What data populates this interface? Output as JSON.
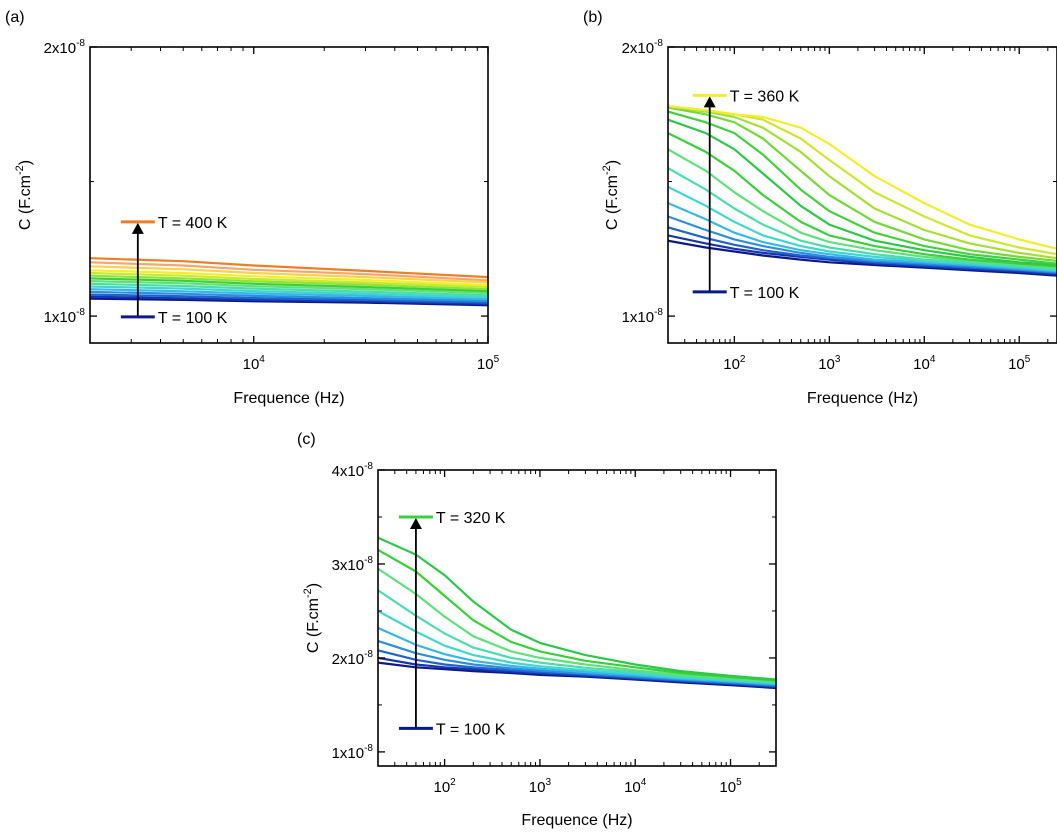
{
  "chart_data": [
    {
      "panel_label": "(a)",
      "type": "line",
      "xlabel": "Frequence (Hz)",
      "ylabel": "C (F.cm⁻²)",
      "ylabel_base": "C (F.cm",
      "ylabel_exp": "-2",
      "ylabel_close": ")",
      "xscale": "log",
      "xlim": [
        2000,
        100000
      ],
      "ylim": [
        9e-09,
        2e-08
      ],
      "xticks": [
        {
          "v": 10000,
          "base": "10",
          "exp": "4"
        },
        {
          "v": 100000,
          "base": "10",
          "exp": "5"
        }
      ],
      "yticks": [
        {
          "v": 1e-08,
          "base": "1x10",
          "exp": "-8"
        },
        {
          "v": 2e-08,
          "base": "2x10",
          "exp": "-8"
        }
      ],
      "temp_low": {
        "text": "T = 100 K",
        "italic_T": true,
        "color": "#0b1a8a",
        "freq": 3200,
        "value": 9.97e-09
      },
      "temp_high": {
        "text": "T = 400 K",
        "italic_T": true,
        "color": "#f07d22",
        "freq": 3200,
        "value": 1.35e-08
      },
      "arrow": {
        "freq": 3200,
        "from": 9.97e-09,
        "to": 1.35e-08
      },
      "x": [
        2000,
        5000,
        10000,
        30000,
        100000
      ],
      "series": [
        {
          "color": "#0b1a8a",
          "values": [
            1.065e-08,
            1.06e-08,
            1.055e-08,
            1.05e-08,
            1.04e-08
          ]
        },
        {
          "color": "#1536b0",
          "values": [
            1.072e-08,
            1.066e-08,
            1.06e-08,
            1.055e-08,
            1.045e-08
          ]
        },
        {
          "color": "#1e63d0",
          "values": [
            1.08e-08,
            1.074e-08,
            1.067e-08,
            1.06e-08,
            1.05e-08
          ]
        },
        {
          "color": "#2a8fe0",
          "values": [
            1.09e-08,
            1.083e-08,
            1.075e-08,
            1.067e-08,
            1.056e-08
          ]
        },
        {
          "color": "#35b8e8",
          "values": [
            1.1e-08,
            1.092e-08,
            1.084e-08,
            1.075e-08,
            1.063e-08
          ]
        },
        {
          "color": "#3fd6d0",
          "values": [
            1.11e-08,
            1.102e-08,
            1.093e-08,
            1.083e-08,
            1.07e-08
          ]
        },
        {
          "color": "#4bdca8",
          "values": [
            1.12e-08,
            1.112e-08,
            1.102e-08,
            1.091e-08,
            1.077e-08
          ]
        },
        {
          "color": "#5fe07a",
          "values": [
            1.13e-08,
            1.122e-08,
            1.111e-08,
            1.1e-08,
            1.085e-08
          ]
        },
        {
          "color": "#39d03a",
          "values": [
            1.14e-08,
            1.131e-08,
            1.12e-08,
            1.108e-08,
            1.093e-08
          ]
        },
        {
          "color": "#8fe23a",
          "values": [
            1.15e-08,
            1.14e-08,
            1.129e-08,
            1.117e-08,
            1.1e-08
          ]
        },
        {
          "color": "#c6ea2e",
          "values": [
            1.16e-08,
            1.15e-08,
            1.138e-08,
            1.125e-08,
            1.108e-08
          ]
        },
        {
          "color": "#f2ee2a",
          "values": [
            1.17e-08,
            1.16e-08,
            1.148e-08,
            1.134e-08,
            1.115e-08
          ]
        },
        {
          "color": "#f7d24a",
          "values": [
            1.185e-08,
            1.174e-08,
            1.16e-08,
            1.145e-08,
            1.125e-08
          ]
        },
        {
          "color": "#f5a56e",
          "values": [
            1.2e-08,
            1.188e-08,
            1.172e-08,
            1.156e-08,
            1.133e-08
          ]
        },
        {
          "color": "#f07d22",
          "values": [
            1.215e-08,
            1.204e-08,
            1.188e-08,
            1.168e-08,
            1.145e-08
          ]
        }
      ]
    },
    {
      "panel_label": "(b)",
      "type": "line",
      "xlabel": "Frequence (Hz)",
      "ylabel": "C (F.cm⁻²)",
      "ylabel_base": "C (F.cm",
      "ylabel_exp": "-2",
      "ylabel_close": ")",
      "xscale": "log",
      "xlim": [
        20,
        250000
      ],
      "ylim": [
        9e-09,
        2e-08
      ],
      "xticks": [
        {
          "v": 100,
          "base": "10",
          "exp": "2"
        },
        {
          "v": 1000,
          "base": "10",
          "exp": "3"
        },
        {
          "v": 10000,
          "base": "10",
          "exp": "4"
        },
        {
          "v": 100000,
          "base": "10",
          "exp": "5"
        }
      ],
      "yticks": [
        {
          "v": 1e-08,
          "base": "1x10",
          "exp": "-8"
        },
        {
          "v": 2e-08,
          "base": "2x10",
          "exp": "-8"
        }
      ],
      "temp_low": {
        "text": "T = 100 K",
        "italic_T": false,
        "color": "#0b1a8a",
        "freq": 55,
        "value": 1.09e-08
      },
      "temp_high": {
        "text": "T = 360 K",
        "italic_T": false,
        "color": "#f2ee2a",
        "freq": 55,
        "value": 1.82e-08
      },
      "arrow": {
        "freq": 55,
        "from": 1.09e-08,
        "to": 1.82e-08
      },
      "x": [
        20,
        50,
        100,
        200,
        500,
        1000,
        3000,
        10000,
        30000,
        100000,
        250000
      ],
      "series": [
        {
          "color": "#0b1a8a",
          "values": [
            1.28e-08,
            1.255e-08,
            1.24e-08,
            1.225e-08,
            1.21e-08,
            1.2e-08,
            1.19e-08,
            1.18e-08,
            1.17e-08,
            1.16e-08,
            1.15e-08
          ]
        },
        {
          "color": "#1536b0",
          "values": [
            1.3e-08,
            1.27e-08,
            1.25e-08,
            1.235e-08,
            1.22e-08,
            1.21e-08,
            1.195e-08,
            1.185e-08,
            1.175e-08,
            1.165e-08,
            1.155e-08
          ]
        },
        {
          "color": "#1e63d0",
          "values": [
            1.33e-08,
            1.29e-08,
            1.265e-08,
            1.245e-08,
            1.225e-08,
            1.215e-08,
            1.2e-08,
            1.19e-08,
            1.18e-08,
            1.17e-08,
            1.16e-08
          ]
        },
        {
          "color": "#2a8fe0",
          "values": [
            1.37e-08,
            1.32e-08,
            1.285e-08,
            1.26e-08,
            1.235e-08,
            1.22e-08,
            1.205e-08,
            1.195e-08,
            1.185e-08,
            1.173e-08,
            1.163e-08
          ]
        },
        {
          "color": "#35b8e8",
          "values": [
            1.42e-08,
            1.36e-08,
            1.31e-08,
            1.275e-08,
            1.245e-08,
            1.23e-08,
            1.21e-08,
            1.2e-08,
            1.19e-08,
            1.177e-08,
            1.167e-08
          ]
        },
        {
          "color": "#3fd6d0",
          "values": [
            1.48e-08,
            1.41e-08,
            1.35e-08,
            1.3e-08,
            1.26e-08,
            1.24e-08,
            1.22e-08,
            1.205e-08,
            1.195e-08,
            1.182e-08,
            1.17e-08
          ]
        },
        {
          "color": "#4bdca8",
          "values": [
            1.55e-08,
            1.47e-08,
            1.4e-08,
            1.34e-08,
            1.28e-08,
            1.255e-08,
            1.23e-08,
            1.21e-08,
            1.2e-08,
            1.186e-08,
            1.175e-08
          ]
        },
        {
          "color": "#5fe07a",
          "values": [
            1.62e-08,
            1.54e-08,
            1.46e-08,
            1.39e-08,
            1.31e-08,
            1.275e-08,
            1.245e-08,
            1.22e-08,
            1.205e-08,
            1.19e-08,
            1.18e-08
          ]
        },
        {
          "color": "#39d03a",
          "values": [
            1.68e-08,
            1.61e-08,
            1.54e-08,
            1.45e-08,
            1.35e-08,
            1.3e-08,
            1.26e-08,
            1.23e-08,
            1.21e-08,
            1.195e-08,
            1.185e-08
          ]
        },
        {
          "color": "#2cc84a",
          "values": [
            1.73e-08,
            1.68e-08,
            1.62e-08,
            1.53e-08,
            1.41e-08,
            1.34e-08,
            1.28e-08,
            1.245e-08,
            1.22e-08,
            1.2e-08,
            1.19e-08
          ]
        },
        {
          "color": "#43d040",
          "values": [
            1.76e-08,
            1.72e-08,
            1.68e-08,
            1.6e-08,
            1.47e-08,
            1.39e-08,
            1.31e-08,
            1.26e-08,
            1.23e-08,
            1.21e-08,
            1.195e-08
          ]
        },
        {
          "color": "#73d83a",
          "values": [
            1.775e-08,
            1.75e-08,
            1.72e-08,
            1.66e-08,
            1.54e-08,
            1.45e-08,
            1.35e-08,
            1.285e-08,
            1.245e-08,
            1.22e-08,
            1.205e-08
          ]
        },
        {
          "color": "#a4e034",
          "values": [
            1.78e-08,
            1.76e-08,
            1.74e-08,
            1.7e-08,
            1.61e-08,
            1.52e-08,
            1.4e-08,
            1.32e-08,
            1.27e-08,
            1.235e-08,
            1.215e-08
          ]
        },
        {
          "color": "#cfe62e",
          "values": [
            1.78e-08,
            1.765e-08,
            1.75e-08,
            1.73e-08,
            1.66e-08,
            1.58e-08,
            1.46e-08,
            1.37e-08,
            1.3e-08,
            1.255e-08,
            1.23e-08
          ]
        },
        {
          "color": "#f2ee2a",
          "values": [
            1.78e-08,
            1.765e-08,
            1.75e-08,
            1.74e-08,
            1.7e-08,
            1.64e-08,
            1.52e-08,
            1.42e-08,
            1.34e-08,
            1.285e-08,
            1.25e-08
          ]
        }
      ]
    },
    {
      "panel_label": "(c)",
      "type": "line",
      "xlabel": "Frequence (Hz)",
      "ylabel": "C (F.cm⁻²)",
      "ylabel_base": "C (F.cm",
      "ylabel_exp": "-2",
      "ylabel_close": ")",
      "xscale": "log",
      "xlim": [
        20,
        300000
      ],
      "ylim": [
        8.5e-09,
        4e-08
      ],
      "xticks": [
        {
          "v": 100,
          "base": "10",
          "exp": "2"
        },
        {
          "v": 1000,
          "base": "10",
          "exp": "3"
        },
        {
          "v": 10000,
          "base": "10",
          "exp": "4"
        },
        {
          "v": 100000,
          "base": "10",
          "exp": "5"
        }
      ],
      "yticks": [
        {
          "v": 1e-08,
          "base": "1x10",
          "exp": "-8"
        },
        {
          "v": 2e-08,
          "base": "2x10",
          "exp": "-8"
        },
        {
          "v": 3e-08,
          "base": "3x10",
          "exp": "-8"
        },
        {
          "v": 4e-08,
          "base": "4x10",
          "exp": "-8"
        }
      ],
      "temp_low": {
        "text": "T = 100 K",
        "italic_T": false,
        "color": "#0b1a8a",
        "freq": 50,
        "value": 1.25e-08
      },
      "temp_high": {
        "text": "T = 320 K",
        "italic_T": false,
        "color": "#39d03a",
        "freq": 50,
        "value": 3.5e-08
      },
      "arrow": {
        "freq": 50,
        "from": 1.25e-08,
        "to": 3.5e-08
      },
      "x": [
        20,
        50,
        100,
        200,
        500,
        1000,
        3000,
        10000,
        30000,
        100000,
        300000
      ],
      "series": [
        {
          "color": "#0b1a8a",
          "values": [
            1.95e-08,
            1.9e-08,
            1.88e-08,
            1.86e-08,
            1.84e-08,
            1.82e-08,
            1.8e-08,
            1.77e-08,
            1.74e-08,
            1.71e-08,
            1.68e-08
          ]
        },
        {
          "color": "#1536b0",
          "values": [
            2e-08,
            1.93e-08,
            1.9e-08,
            1.88e-08,
            1.855e-08,
            1.835e-08,
            1.81e-08,
            1.78e-08,
            1.75e-08,
            1.72e-08,
            1.69e-08
          ]
        },
        {
          "color": "#1e63d0",
          "values": [
            2.08e-08,
            1.98e-08,
            1.93e-08,
            1.9e-08,
            1.87e-08,
            1.85e-08,
            1.825e-08,
            1.79e-08,
            1.76e-08,
            1.73e-08,
            1.7e-08
          ]
        },
        {
          "color": "#2a8fe0",
          "values": [
            2.18e-08,
            2.05e-08,
            1.98e-08,
            1.93e-08,
            1.89e-08,
            1.865e-08,
            1.835e-08,
            1.8e-08,
            1.77e-08,
            1.74e-08,
            1.71e-08
          ]
        },
        {
          "color": "#35b8e8",
          "values": [
            2.32e-08,
            2.14e-08,
            2.04e-08,
            1.97e-08,
            1.915e-08,
            1.885e-08,
            1.85e-08,
            1.815e-08,
            1.78e-08,
            1.75e-08,
            1.72e-08
          ]
        },
        {
          "color": "#3fd6d0",
          "values": [
            2.5e-08,
            2.28e-08,
            2.13e-08,
            2.03e-08,
            1.95e-08,
            1.91e-08,
            1.87e-08,
            1.83e-08,
            1.79e-08,
            1.76e-08,
            1.73e-08
          ]
        },
        {
          "color": "#4bdca8",
          "values": [
            2.72e-08,
            2.45e-08,
            2.26e-08,
            2.11e-08,
            2e-08,
            1.95e-08,
            1.895e-08,
            1.85e-08,
            1.805e-08,
            1.77e-08,
            1.74e-08
          ]
        },
        {
          "color": "#5fe07a",
          "values": [
            2.95e-08,
            2.68e-08,
            2.44e-08,
            2.23e-08,
            2.07e-08,
            2e-08,
            1.93e-08,
            1.87e-08,
            1.82e-08,
            1.78e-08,
            1.75e-08
          ]
        },
        {
          "color": "#39d03a",
          "values": [
            3.15e-08,
            2.92e-08,
            2.66e-08,
            2.4e-08,
            2.17e-08,
            2.07e-08,
            1.97e-08,
            1.9e-08,
            1.84e-08,
            1.795e-08,
            1.76e-08
          ]
        },
        {
          "color": "#2cc84a",
          "values": [
            3.28e-08,
            3.1e-08,
            2.88e-08,
            2.6e-08,
            2.3e-08,
            2.16e-08,
            2.03e-08,
            1.93e-08,
            1.86e-08,
            1.81e-08,
            1.77e-08
          ]
        }
      ]
    }
  ]
}
